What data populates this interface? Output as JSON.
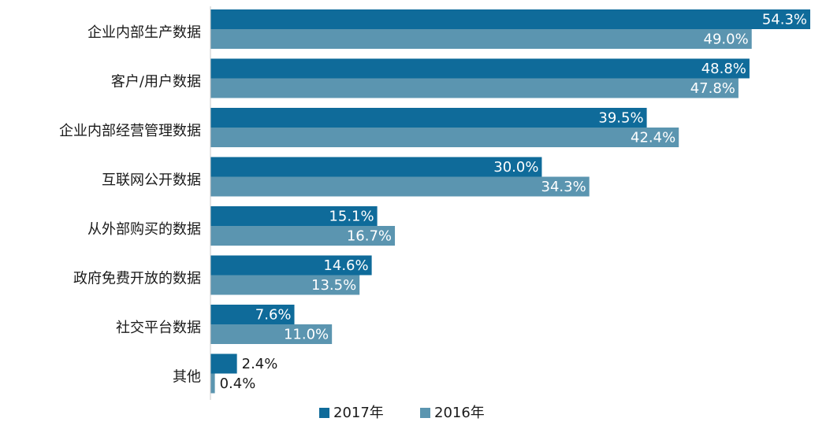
{
  "chart_data": {
    "type": "bar",
    "orientation": "horizontal",
    "categories": [
      "企业内部生产数据",
      "客户/用户数据",
      "企业内部经营管理数据",
      "互联网公开数据",
      "从外部购买的数据",
      "政府免费开放的数据",
      "社交平台数据",
      "其他"
    ],
    "series": [
      {
        "name": "2017年",
        "color": "#0f6b9a",
        "values": [
          54.3,
          48.8,
          39.5,
          30.0,
          15.1,
          14.6,
          7.6,
          2.4
        ],
        "labels": [
          "54.3%",
          "48.8%",
          "39.5%",
          "30.0%",
          "15.1%",
          "14.6%",
          "7.6%",
          "2.4%"
        ]
      },
      {
        "name": "2016年",
        "color": "#5b95b0",
        "values": [
          49.0,
          47.8,
          42.4,
          34.3,
          16.7,
          13.5,
          11.0,
          0.4
        ],
        "labels": [
          "49.0%",
          "47.8%",
          "42.4%",
          "34.3%",
          "16.7%",
          "13.5%",
          "11.0%",
          "0.4%"
        ]
      }
    ],
    "legend": "bottom",
    "grid": false,
    "xlim": [
      0,
      55
    ]
  }
}
